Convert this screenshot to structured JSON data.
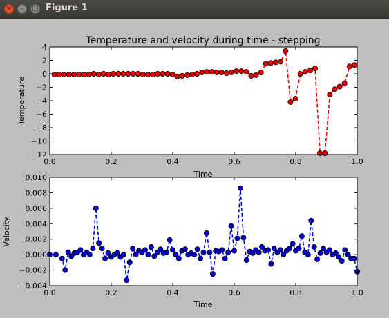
{
  "window": {
    "title": "Figure 1",
    "close_glyph": "×",
    "minimize_glyph": "–",
    "maximize_glyph": "□"
  },
  "chart_data": [
    {
      "type": "line",
      "title": "Temperature and velocity during time - stepping",
      "xlabel": "Time",
      "ylabel": "Temperature",
      "xlim": [
        0.0,
        1.0
      ],
      "ylim": [
        -12,
        4
      ],
      "xticks": [
        0.0,
        0.2,
        0.4,
        0.6,
        0.8,
        1.0
      ],
      "xtick_labels": [
        "0.0",
        "0.2",
        "0.4",
        "0.6",
        "0.8",
        "1.0"
      ],
      "yticks": [
        4,
        2,
        0,
        -2,
        -4,
        -6,
        -8,
        -10,
        -12
      ],
      "ytick_labels": [
        "4",
        "2",
        "0",
        "−2",
        "−4",
        "−6",
        "−8",
        "−10",
        "−12"
      ],
      "line_color": "#ff0000",
      "marker_color": "#e60000",
      "line_style": "dashed",
      "marker": "circle",
      "grid": false,
      "x": [
        0.015,
        0.031,
        0.047,
        0.063,
        0.079,
        0.095,
        0.111,
        0.127,
        0.143,
        0.159,
        0.175,
        0.191,
        0.207,
        0.223,
        0.239,
        0.255,
        0.271,
        0.287,
        0.303,
        0.319,
        0.335,
        0.351,
        0.367,
        0.383,
        0.399,
        0.415,
        0.431,
        0.447,
        0.463,
        0.479,
        0.495,
        0.511,
        0.527,
        0.543,
        0.559,
        0.575,
        0.591,
        0.607,
        0.623,
        0.639,
        0.655,
        0.671,
        0.687,
        0.703,
        0.719,
        0.735,
        0.751,
        0.767,
        0.783,
        0.799,
        0.815,
        0.831,
        0.847,
        0.863,
        0.879,
        0.895,
        0.911,
        0.927,
        0.943,
        0.959,
        0.975,
        0.991
      ],
      "y": [
        -0.1,
        -0.1,
        -0.1,
        -0.1,
        -0.1,
        -0.1,
        -0.1,
        -0.1,
        0.0,
        -0.1,
        0.0,
        -0.1,
        0.0,
        0.0,
        0.0,
        0.0,
        0.0,
        0.0,
        -0.1,
        -0.1,
        -0.1,
        0.0,
        0.0,
        0.0,
        -0.1,
        -0.4,
        -0.3,
        -0.2,
        -0.1,
        0.0,
        0.2,
        0.3,
        0.3,
        0.2,
        0.2,
        0.1,
        0.2,
        0.4,
        0.4,
        0.3,
        -0.3,
        -0.2,
        0.2,
        1.5,
        1.6,
        1.7,
        1.8,
        3.4,
        -4.2,
        -3.7,
        0.0,
        0.3,
        0.5,
        0.8,
        -11.8,
        -11.8,
        -3.1,
        -2.3,
        -1.9,
        -1.4,
        1.1,
        1.3
      ]
    },
    {
      "type": "line",
      "xlabel": "Time",
      "ylabel": "Velocity",
      "xlim": [
        0.0,
        1.0
      ],
      "ylim": [
        -0.004,
        0.01
      ],
      "xticks": [
        0.0,
        0.2,
        0.4,
        0.6,
        0.8,
        1.0
      ],
      "xtick_labels": [
        "0.0",
        "0.2",
        "0.4",
        "0.6",
        "0.8",
        "1.0"
      ],
      "yticks": [
        0.01,
        0.008,
        0.006,
        0.004,
        0.002,
        0.0,
        -0.002,
        -0.004
      ],
      "ytick_labels": [
        "0.010",
        "0.008",
        "0.006",
        "0.004",
        "0.002",
        "0.000",
        "−0.002",
        "−0.004"
      ],
      "line_color": "#0000ff",
      "marker_color": "#0000cc",
      "line_style": "dashed",
      "marker": "circle",
      "grid": false,
      "x": [
        0.0,
        0.02,
        0.04,
        0.05,
        0.06,
        0.07,
        0.08,
        0.09,
        0.1,
        0.11,
        0.12,
        0.13,
        0.14,
        0.15,
        0.16,
        0.17,
        0.18,
        0.19,
        0.2,
        0.21,
        0.22,
        0.23,
        0.24,
        0.25,
        0.26,
        0.27,
        0.28,
        0.29,
        0.3,
        0.31,
        0.32,
        0.33,
        0.34,
        0.35,
        0.36,
        0.37,
        0.38,
        0.39,
        0.4,
        0.41,
        0.42,
        0.43,
        0.44,
        0.45,
        0.46,
        0.47,
        0.48,
        0.49,
        0.5,
        0.51,
        0.52,
        0.53,
        0.54,
        0.55,
        0.56,
        0.57,
        0.58,
        0.59,
        0.6,
        0.61,
        0.62,
        0.63,
        0.64,
        0.65,
        0.66,
        0.67,
        0.68,
        0.69,
        0.7,
        0.71,
        0.72,
        0.73,
        0.74,
        0.75,
        0.76,
        0.77,
        0.78,
        0.79,
        0.8,
        0.81,
        0.82,
        0.83,
        0.84,
        0.85,
        0.86,
        0.87,
        0.88,
        0.89,
        0.9,
        0.91,
        0.92,
        0.93,
        0.94,
        0.95,
        0.96,
        0.97,
        0.98,
        0.99,
        1.0
      ],
      "y": [
        0.0,
        0.0,
        -0.0005,
        -0.002,
        0.0003,
        -0.0002,
        0.0002,
        0.0003,
        0.0006,
        0.0,
        0.0003,
        0.0,
        0.0008,
        0.006,
        0.0015,
        0.0008,
        -0.0005,
        0.0002,
        -0.0003,
        0.0,
        0.0002,
        -0.0003,
        0.0,
        -0.0033,
        -0.001,
        0.0008,
        0.0,
        0.0005,
        0.0003,
        0.0006,
        0.0,
        0.001,
        -0.0002,
        0.0003,
        0.0007,
        0.0002,
        0.0003,
        0.0019,
        0.0006,
        0.0,
        -0.0005,
        0.0005,
        0.0007,
        0.0,
        0.0002,
        0.0,
        0.0007,
        -0.0005,
        0.0003,
        0.0028,
        0.0003,
        -0.0025,
        0.0005,
        0.0004,
        0.0006,
        -0.0005,
        0.0003,
        0.0037,
        0.0005,
        0.0021,
        0.0086,
        0.0022,
        -0.0007,
        0.0004,
        0.0002,
        0.0006,
        0.0003,
        0.001,
        0.0005,
        0.0006,
        -0.0012,
        0.0008,
        0.0003,
        0.0006,
        0.0,
        0.0005,
        0.0008,
        0.0014,
        0.0005,
        0.0008,
        0.0024,
        0.0003,
        0.0,
        0.0044,
        0.001,
        -0.0006,
        0.0002,
        0.0008,
        0.0003,
        0.0006,
        0.0,
        0.0002,
        -0.0003,
        -0.0008,
        0.0006,
        0.0,
        -0.0005,
        -0.0005,
        -0.0022
      ]
    }
  ]
}
